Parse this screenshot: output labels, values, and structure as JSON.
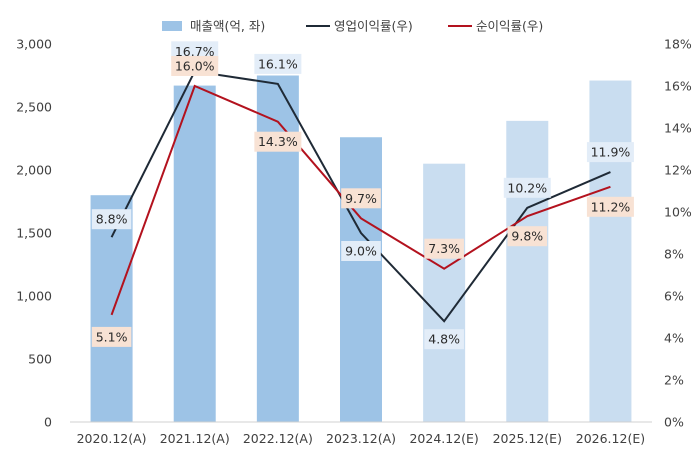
{
  "chart_data": {
    "type": "bar",
    "categories": [
      "2020.12(A)",
      "2021.12(A)",
      "2022.12(A)",
      "2023.12(A)",
      "2024.12(E)",
      "2025.12(E)",
      "2026.12(E)"
    ],
    "series": [
      {
        "name": "매출액(억, 좌)",
        "type": "bar",
        "axis": "left",
        "values": [
          1800,
          2670,
          2750,
          2260,
          2050,
          2390,
          2710
        ],
        "colors": [
          "#9dc3e6",
          "#9dc3e6",
          "#9dc3e6",
          "#9dc3e6",
          "#c9ddf0",
          "#c9ddf0",
          "#c9ddf0"
        ]
      },
      {
        "name": "영업이익률(우)",
        "type": "line",
        "axis": "right",
        "color": "#1f2a36",
        "values": [
          8.8,
          16.7,
          16.1,
          9.0,
          4.8,
          10.2,
          11.9
        ],
        "labels": [
          "8.8%",
          "16.7%",
          "16.1%",
          "9.0%",
          "4.8%",
          "10.2%",
          "11.9%"
        ]
      },
      {
        "name": "순이익률(우)",
        "type": "line",
        "axis": "right",
        "color": "#b3121e",
        "values": [
          5.1,
          16.0,
          14.3,
          9.7,
          7.3,
          9.8,
          11.2
        ],
        "labels": [
          "5.1%",
          "16.0%",
          "14.3%",
          "9.7%",
          "7.3%",
          "9.8%",
          "11.2%"
        ]
      }
    ],
    "y_left": {
      "min": 0,
      "max": 3000,
      "ticks": [
        "0",
        "500",
        "1,000",
        "1,500",
        "2,000",
        "2,500",
        "3,000"
      ]
    },
    "y_right": {
      "min": 0,
      "max": 18,
      "ticks": [
        "0%",
        "2%",
        "4%",
        "6%",
        "8%",
        "10%",
        "12%",
        "14%",
        "16%",
        "18%"
      ]
    },
    "grid": false,
    "legend_position": "top"
  }
}
